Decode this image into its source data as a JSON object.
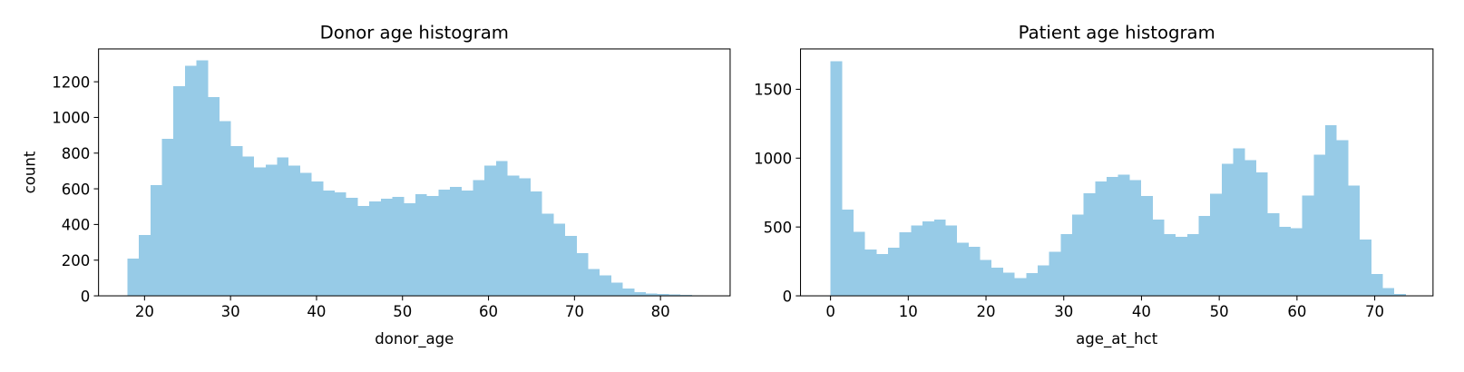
{
  "chart_data": [
    {
      "type": "histogram",
      "title": "Donor age histogram",
      "xlabel": "donor_age",
      "ylabel": "count",
      "color": "#97cbe7",
      "bins": [
        18,
        19.34,
        20.68,
        22.02,
        23.36,
        24.7,
        26.04,
        27.38,
        28.72,
        30.06,
        31.4,
        32.74,
        34.08,
        35.42,
        36.76,
        38.1,
        39.44,
        40.78,
        42.12,
        43.46,
        44.8,
        46.14,
        47.48,
        48.82,
        50.16,
        51.5,
        52.84,
        54.18,
        55.52,
        56.86,
        58.2,
        59.54,
        60.88,
        62.22,
        63.56,
        64.9,
        66.24,
        67.58,
        68.92,
        70.26,
        71.6,
        72.94,
        74.28,
        75.62,
        76.96,
        78.3,
        79.64,
        80.98,
        82.32,
        83.66,
        85
      ],
      "values": [
        210,
        340,
        620,
        880,
        1175,
        1290,
        1320,
        1115,
        980,
        840,
        780,
        720,
        735,
        775,
        730,
        690,
        640,
        590,
        580,
        550,
        505,
        530,
        545,
        555,
        520,
        570,
        560,
        595,
        610,
        590,
        650,
        730,
        755,
        675,
        660,
        585,
        460,
        405,
        335,
        240,
        150,
        115,
        75,
        40,
        20,
        12,
        10,
        8,
        5,
        3
      ],
      "xlim": [
        14.65,
        88.1
      ],
      "ylim": [
        0,
        1384
      ],
      "xticks": [
        20,
        30,
        40,
        50,
        60,
        70,
        80
      ],
      "yticks": [
        0,
        200,
        400,
        600,
        800,
        1000,
        1200
      ]
    },
    {
      "type": "histogram",
      "title": "Patient age histogram",
      "xlabel": "age_at_hct",
      "color": "#97cbe7",
      "bins": [
        0,
        1.48,
        2.96,
        4.44,
        5.92,
        7.4,
        8.88,
        10.36,
        11.84,
        13.32,
        14.8,
        16.28,
        17.76,
        19.24,
        20.72,
        22.2,
        23.68,
        25.16,
        26.64,
        28.12,
        29.6,
        31.08,
        32.56,
        34.04,
        35.52,
        37,
        38.48,
        39.96,
        41.44,
        42.92,
        44.4,
        45.88,
        47.36,
        48.84,
        50.32,
        51.8,
        53.28,
        54.76,
        56.24,
        57.72,
        59.2,
        60.68,
        62.16,
        63.64,
        65.12,
        66.6,
        68.08,
        69.56,
        71.04,
        72.52,
        74
      ],
      "values": [
        1705,
        625,
        465,
        335,
        305,
        350,
        460,
        510,
        540,
        555,
        510,
        385,
        355,
        260,
        205,
        170,
        130,
        165,
        220,
        320,
        450,
        590,
        745,
        830,
        865,
        880,
        840,
        725,
        555,
        450,
        430,
        450,
        580,
        740,
        960,
        1070,
        985,
        895,
        600,
        500,
        490,
        730,
        1025,
        1240,
        1130,
        800,
        410,
        160,
        55,
        15
      ],
      "xlim": [
        -3.86,
        77.5
      ],
      "ylim": [
        0,
        1793
      ],
      "xticks": [
        0,
        10,
        20,
        30,
        40,
        50,
        60,
        70
      ],
      "yticks": [
        0,
        500,
        1000,
        1500
      ]
    }
  ]
}
